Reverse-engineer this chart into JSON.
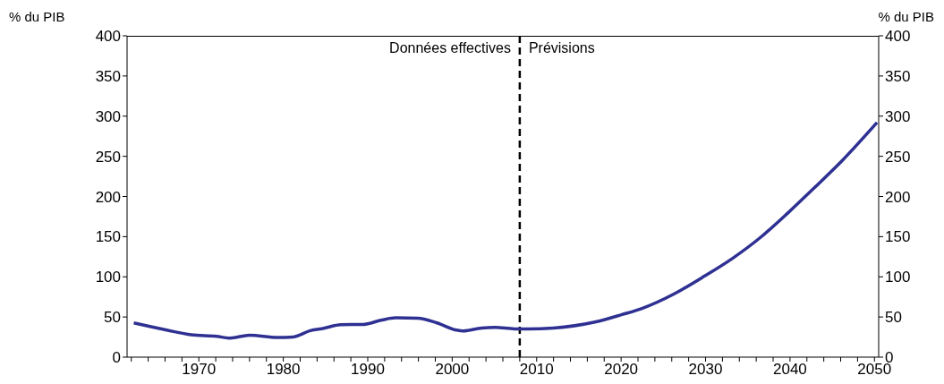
{
  "chart_data": {
    "type": "line",
    "ylabel": "% du PIB",
    "y2label": "% du PIB",
    "annotations": [
      "Données effectives",
      "Prévisions"
    ],
    "x": [
      1962.3,
      1966.2,
      1969.1,
      1972.1,
      1973.7,
      1976,
      1979.3,
      1981.2,
      1983.2,
      1984.8,
      1986.8,
      1989.4,
      1991.7,
      1993.3,
      1995.9,
      1998.2,
      2000.5,
      2001.3,
      2003.5,
      2005.1,
      2007.4,
      2009,
      2012,
      2016.9,
      2020.1,
      2022.4,
      2026.3,
      2029.9,
      2033.2,
      2036.5,
      2039.7,
      2043,
      2046.3,
      2050.3
    ],
    "series": [
      {
        "color": "#2e3192",
        "values": [
          42.6,
          33.7,
          27.8,
          25.9,
          23.7,
          27.4,
          24.4,
          25.2,
          33,
          35.9,
          40.4,
          40.7,
          46.3,
          48.9,
          48.5,
          42.6,
          33.7,
          32.6,
          36.3,
          37,
          35.2,
          35.2,
          36.3,
          43.7,
          53,
          60.4,
          78.9,
          101,
          123,
          149,
          179,
          212,
          246,
          292
        ]
      }
    ],
    "xlim": [
      1961.5,
      2050.5
    ],
    "xticks": [
      {
        "value": 1962,
        "label": null
      },
      {
        "value": 1964,
        "label": null
      },
      {
        "value": 1966,
        "label": null
      },
      {
        "value": 1968,
        "label": null
      },
      1970,
      {
        "value": 1972,
        "label": null
      },
      {
        "value": 1974,
        "label": null
      },
      {
        "value": 1976,
        "label": null
      },
      {
        "value": 1978,
        "label": null
      },
      1980,
      {
        "value": 1982,
        "label": null
      },
      {
        "value": 1984,
        "label": null
      },
      {
        "value": 1986,
        "label": null
      },
      {
        "value": 1988,
        "label": null
      },
      1990,
      {
        "value": 1992,
        "label": null
      },
      {
        "value": 1994,
        "label": null
      },
      {
        "value": 1996,
        "label": null
      },
      {
        "value": 1998,
        "label": null
      },
      2000,
      {
        "value": 2002,
        "label": null
      },
      {
        "value": 2004,
        "label": null
      },
      {
        "value": 2006,
        "label": null
      },
      {
        "value": 2008,
        "label": null
      },
      2010,
      {
        "value": 2012,
        "label": null
      },
      {
        "value": 2014,
        "label": null
      },
      {
        "value": 2016,
        "label": null
      },
      {
        "value": 2018,
        "label": null
      },
      2020,
      {
        "value": 2022,
        "label": null
      },
      {
        "value": 2024,
        "label": null
      },
      {
        "value": 2026,
        "label": null
      },
      {
        "value": 2028,
        "label": null
      },
      2030,
      {
        "value": 2032,
        "label": null
      },
      {
        "value": 2034,
        "label": null
      },
      {
        "value": 2036,
        "label": null
      },
      {
        "value": 2038,
        "label": null
      },
      2040,
      {
        "value": 2042,
        "label": null
      },
      {
        "value": 2044,
        "label": null
      },
      {
        "value": 2046,
        "label": null
      },
      {
        "value": 2048,
        "label": null
      },
      2050
    ],
    "ylim": [
      0,
      400
    ],
    "yticks": [
      0,
      50,
      100,
      150,
      200,
      250,
      300,
      350,
      400
    ],
    "y2lim": [
      0,
      400
    ],
    "y2ticks": [
      0,
      50,
      100,
      150,
      200,
      250,
      300,
      350,
      400
    ],
    "ref_lines": [
      {
        "axis": "x",
        "value": 2008,
        "color": "#000000",
        "line_style": "dashed"
      }
    ],
    "grid": false,
    "legend": false,
    "marker": "none",
    "line_style": "solid"
  }
}
